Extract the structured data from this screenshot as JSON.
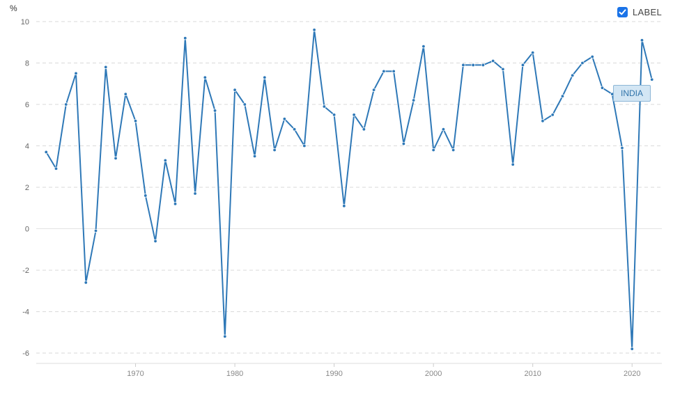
{
  "chart_data": {
    "type": "line",
    "unit": "%",
    "xlim": [
      1960,
      2023
    ],
    "ylim": [
      -6.5,
      10.2
    ],
    "x_ticks": [
      1970,
      1980,
      1990,
      2000,
      2010,
      2020
    ],
    "y_ticks": [
      -6,
      -4,
      -2,
      0,
      2,
      4,
      6,
      8,
      10
    ],
    "grid": true,
    "legend": {
      "label": "LABEL",
      "checked": true,
      "placement": "top-right"
    },
    "series": [
      {
        "name": "INDIA",
        "color": "#2e78b7",
        "x": [
          1961,
          1962,
          1963,
          1964,
          1965,
          1966,
          1967,
          1968,
          1969,
          1970,
          1971,
          1972,
          1973,
          1974,
          1975,
          1976,
          1977,
          1978,
          1979,
          1980,
          1981,
          1982,
          1983,
          1984,
          1985,
          1986,
          1987,
          1988,
          1989,
          1990,
          1991,
          1992,
          1993,
          1994,
          1995,
          1996,
          1997,
          1998,
          1999,
          2000,
          2001,
          2002,
          2003,
          2004,
          2005,
          2006,
          2007,
          2008,
          2009,
          2010,
          2011,
          2012,
          2013,
          2014,
          2015,
          2016,
          2017,
          2018,
          2019,
          2020,
          2021,
          2022
        ],
        "values": [
          3.7,
          2.9,
          6.0,
          7.5,
          -2.6,
          -0.1,
          7.8,
          3.4,
          6.5,
          5.2,
          1.6,
          -0.6,
          3.3,
          1.2,
          9.2,
          1.7,
          7.3,
          5.7,
          -5.2,
          6.7,
          6.0,
          3.5,
          7.3,
          3.8,
          5.3,
          4.8,
          4.0,
          9.6,
          5.9,
          5.5,
          1.1,
          5.5,
          4.8,
          6.7,
          7.6,
          7.6,
          4.1,
          6.2,
          8.8,
          3.8,
          4.8,
          3.8,
          7.9,
          7.9,
          7.9,
          8.1,
          7.7,
          3.1,
          7.9,
          8.5,
          5.2,
          5.5,
          6.4,
          7.4,
          8.0,
          8.3,
          6.8,
          6.5,
          3.9,
          -5.8,
          9.1,
          7.2
        ]
      }
    ]
  }
}
